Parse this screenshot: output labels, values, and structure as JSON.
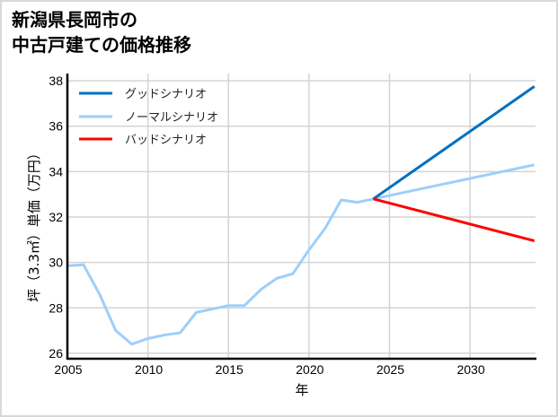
{
  "title": {
    "line1": "新潟県長岡市の",
    "line2": "中古戸建ての価格推移"
  },
  "colors": {
    "good": "#0070C0",
    "normal": "#9DCFFA",
    "bad": "#FF0000",
    "grid": "#d4d4d4",
    "frame": "#d9d9d9"
  },
  "chart_data": {
    "type": "line",
    "title": "新潟県長岡市の中古戸建ての価格推移",
    "xlabel": "年",
    "ylabel": "坪（3.3㎡）単価（万円）",
    "xlim": [
      2005,
      2034
    ],
    "ylim": [
      25.75,
      38.3
    ],
    "xticks": [
      2005,
      2010,
      2015,
      2020,
      2025,
      2030
    ],
    "yticks": [
      26,
      28,
      30,
      32,
      34,
      36,
      38
    ],
    "grid": true,
    "legend_position": "upper left",
    "series": [
      {
        "name": "グッドシナリオ",
        "color": "#0070C0",
        "x": [
          2024,
          2034
        ],
        "values": [
          32.8,
          37.75
        ]
      },
      {
        "name": "ノーマルシナリオ",
        "color": "#9DCFFA",
        "x": [
          2005,
          2006,
          2007,
          2008,
          2009,
          2010,
          2011,
          2012,
          2013,
          2014,
          2015,
          2016,
          2017,
          2018,
          2019,
          2020,
          2021,
          2022,
          2023,
          2024,
          2034
        ],
        "values": [
          29.85,
          29.9,
          28.6,
          27.0,
          26.4,
          26.65,
          26.8,
          26.9,
          27.8,
          27.95,
          28.1,
          28.1,
          28.8,
          29.3,
          29.5,
          30.55,
          31.5,
          32.75,
          32.65,
          32.8,
          34.3
        ]
      },
      {
        "name": "バッドシナリオ",
        "color": "#FF0000",
        "x": [
          2024,
          2034
        ],
        "values": [
          32.8,
          30.95
        ]
      }
    ]
  },
  "legend": [
    {
      "label": "グッドシナリオ"
    },
    {
      "label": "ノーマルシナリオ"
    },
    {
      "label": "バッドシナリオ"
    }
  ],
  "axes": {
    "x_label": "年",
    "y_label": "坪（3.3㎡）単価（万円）",
    "x_ticks": [
      "2005",
      "2010",
      "2015",
      "2020",
      "2025",
      "2030"
    ],
    "y_ticks": [
      "26",
      "28",
      "30",
      "32",
      "34",
      "36",
      "38"
    ]
  }
}
